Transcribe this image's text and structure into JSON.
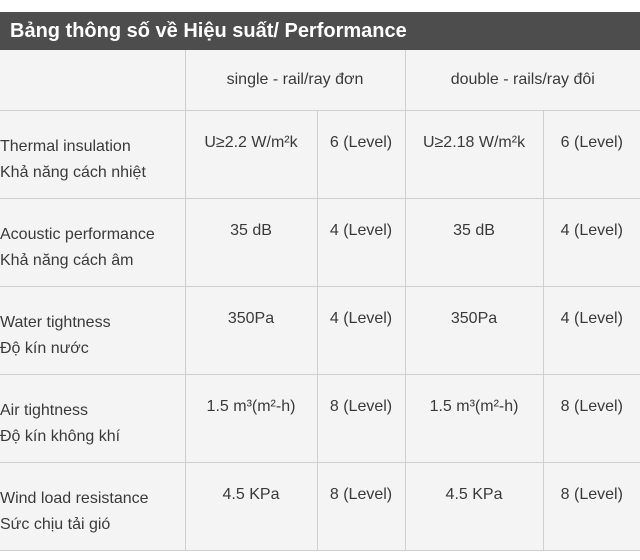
{
  "title": "Bảng thông số về Hiệu suất/ Performance",
  "columns": {
    "blank": "",
    "single": "single - rail/ray đơn",
    "double": "double - rails/ray đôi"
  },
  "rows": [
    {
      "en": "Thermal insulation",
      "vi": "Khả năng cách nhiệt",
      "single_value": "U≥2.2 W/m²k",
      "single_level": "6 (Level)",
      "double_value": "U≥2.18 W/m²k",
      "double_level": "6 (Level)"
    },
    {
      "en": "Acoustic performance",
      "vi": "Khả năng cách âm",
      "single_value": "35 dB",
      "single_level": "4 (Level)",
      "double_value": "35 dB",
      "double_level": "4 (Level)"
    },
    {
      "en": "Water tightness",
      "vi": "Độ kín nước",
      "single_value": "350Pa",
      "single_level": "4 (Level)",
      "double_value": "350Pa",
      "double_level": "4 (Level)"
    },
    {
      "en": "Air tightness",
      "vi": "Độ kín không khí",
      "single_value": "1.5 m³(m²-h)",
      "single_level": "8 (Level)",
      "double_value": "1.5 m³(m²-h)",
      "double_level": "8 (Level)"
    },
    {
      "en": "Wind load resistance",
      "vi": "Sức chịu tải gió",
      "single_value": "4.5 KPa",
      "single_level": "8 (Level)",
      "double_value": "4.5 KPa",
      "double_level": "8 (Level)"
    }
  ]
}
